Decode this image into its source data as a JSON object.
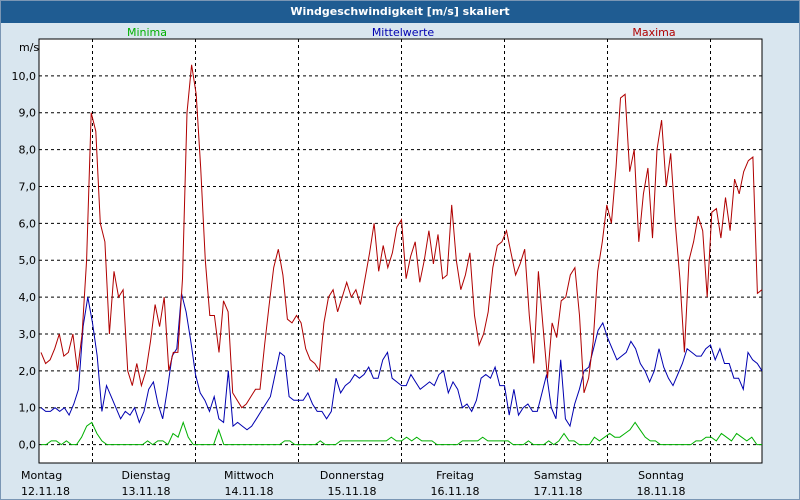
{
  "chart_data": {
    "type": "line",
    "title": "Windgeschwindigkeit [m/s] skaliert",
    "ylabel": "m/s",
    "ylim": [
      -0.5,
      11
    ],
    "yticks": [
      0,
      1,
      2,
      3,
      4,
      5,
      6,
      7,
      8,
      9,
      10
    ],
    "ytick_labels": [
      "0,0",
      "1,0",
      "2,0",
      "3,0",
      "4,0",
      "5,0",
      "6,0",
      "7,0",
      "8,0",
      "9,0",
      "10,0"
    ],
    "xlim": [
      0,
      7
    ],
    "x_ticks": [
      {
        "day": "Montag",
        "date": "12.11.18",
        "x": 0
      },
      {
        "day": "Dienstag",
        "date": "13.11.18",
        "x": 1
      },
      {
        "day": "Mittwoch",
        "date": "14.11.18",
        "x": 2
      },
      {
        "day": "Donnerstag",
        "date": "15.11.18",
        "x": 3
      },
      {
        "day": "Freitag",
        "date": "16.11.18",
        "x": 4
      },
      {
        "day": "Samstag",
        "date": "17.11.18",
        "x": 5
      },
      {
        "day": "Sonntag",
        "date": "18.11.18",
        "x": 6
      }
    ],
    "grid": true,
    "legend_position": "top",
    "series": [
      {
        "name": "Minima",
        "color": "#00b000",
        "values": [
          0.0,
          0.0,
          0.1,
          0.1,
          0.0,
          0.1,
          0.0,
          0.0,
          0.2,
          0.5,
          0.6,
          0.3,
          0.1,
          0.0,
          0.0,
          0.0,
          0.0,
          0.0,
          0.0,
          0.0,
          0.0,
          0.1,
          0.0,
          0.1,
          0.1,
          0.0,
          0.3,
          0.2,
          0.6,
          0.2,
          0.0,
          0.0,
          0.0,
          0.0,
          0.0,
          0.4,
          0.0,
          0.0,
          0.0,
          0.0,
          0.0,
          0.0,
          0.0,
          0.0,
          0.0,
          0.0,
          0.0,
          0.0,
          0.1,
          0.1,
          0.0,
          0.0,
          0.0,
          0.0,
          0.0,
          0.1,
          0.0,
          0.0,
          0.0,
          0.1,
          0.1,
          0.1,
          0.1,
          0.1,
          0.1,
          0.1,
          0.1,
          0.1,
          0.1,
          0.2,
          0.1,
          0.1,
          0.2,
          0.1,
          0.2,
          0.1,
          0.1,
          0.1,
          0.0,
          0.0,
          0.0,
          0.0,
          0.0,
          0.1,
          0.1,
          0.1,
          0.1,
          0.2,
          0.1,
          0.1,
          0.1,
          0.1,
          0.1,
          0.0,
          0.0,
          0.0,
          0.1,
          0.0,
          0.0,
          0.0,
          0.1,
          0.0,
          0.1,
          0.3,
          0.1,
          0.1,
          0.0,
          0.0,
          0.0,
          0.2,
          0.1,
          0.2,
          0.3,
          0.2,
          0.2,
          0.3,
          0.4,
          0.6,
          0.4,
          0.2,
          0.1,
          0.1,
          0.0,
          0.0,
          0.0,
          0.0,
          0.0,
          0.0,
          0.0,
          0.1,
          0.1,
          0.2,
          0.2,
          0.1,
          0.3,
          0.2,
          0.1,
          0.3,
          0.2,
          0.1,
          0.2,
          0.0,
          0.0
        ]
      },
      {
        "name": "Mittelwerte",
        "color": "#0000b0",
        "values": [
          1.0,
          0.9,
          0.9,
          1.0,
          0.9,
          1.0,
          0.8,
          1.1,
          1.5,
          3.2,
          4.0,
          3.3,
          2.4,
          0.9,
          1.6,
          1.3,
          1.0,
          0.7,
          0.9,
          0.8,
          1.0,
          0.6,
          0.9,
          1.5,
          1.7,
          1.1,
          0.7,
          1.5,
          2.4,
          2.6,
          4.1,
          3.6,
          2.8,
          1.9,
          1.4,
          1.2,
          0.9,
          1.3,
          0.7,
          0.6,
          2.0,
          0.5,
          0.6,
          0.5,
          0.4,
          0.5,
          0.7,
          0.9,
          1.1,
          1.3,
          1.9,
          2.5,
          2.4,
          1.3,
          1.2,
          1.2,
          1.2,
          1.4,
          1.1,
          0.9,
          0.9,
          0.7,
          0.9,
          1.8,
          1.4,
          1.6,
          1.7,
          1.9,
          1.8,
          1.9,
          2.1,
          1.8,
          1.8,
          2.3,
          2.5,
          1.8,
          1.7,
          1.6,
          1.6,
          1.9,
          1.7,
          1.5,
          1.6,
          1.7,
          1.6,
          1.9,
          2.0,
          1.4,
          1.7,
          1.5,
          1.0,
          1.1,
          0.9,
          1.2,
          1.8,
          1.9,
          1.8,
          2.1,
          1.6,
          1.6,
          0.8,
          1.5,
          0.8,
          1.0,
          1.1,
          0.9,
          0.9,
          1.4,
          1.9,
          1.0,
          0.7,
          2.3,
          0.7,
          0.5,
          1.1,
          1.5,
          2.0,
          2.1,
          2.6,
          3.1,
          3.3,
          2.9,
          2.6,
          2.3,
          2.4,
          2.5,
          2.8,
          2.6,
          2.2,
          2.0,
          1.7,
          2.0,
          2.6,
          2.1,
          1.8,
          1.6,
          1.9,
          2.2,
          2.6,
          2.5,
          2.4,
          2.4,
          2.6,
          2.7,
          2.3,
          2.6,
          2.2,
          2.2,
          1.8,
          1.8,
          1.5,
          2.5,
          2.3,
          2.2,
          2.0
        ]
      },
      {
        "name": "Maxima",
        "color": "#b00000",
        "values": [
          2.5,
          2.2,
          2.3,
          2.6,
          3.0,
          2.4,
          2.5,
          3.0,
          2.0,
          3.0,
          5.0,
          9.0,
          8.5,
          6.0,
          5.5,
          3.0,
          4.7,
          4.0,
          4.2,
          2.0,
          1.6,
          2.2,
          1.6,
          2.0,
          2.8,
          3.8,
          3.2,
          4.0,
          2.0,
          2.5,
          2.5,
          4.5,
          9.0,
          10.3,
          9.5,
          7.5,
          5.0,
          3.5,
          3.5,
          2.5,
          3.9,
          3.6,
          1.4,
          1.2,
          1.0,
          1.1,
          1.3,
          1.5,
          1.5,
          2.7,
          3.8,
          4.8,
          5.3,
          4.6,
          3.4,
          3.3,
          3.5,
          3.3,
          2.6,
          2.3,
          2.2,
          2.0,
          3.3,
          4.0,
          4.2,
          3.6,
          4.0,
          4.4,
          4.0,
          4.2,
          3.8,
          4.5,
          5.2,
          6.0,
          4.7,
          5.4,
          4.8,
          5.2,
          5.9,
          6.1,
          4.5,
          5.1,
          5.5,
          4.4,
          5.0,
          5.8,
          4.9,
          5.7,
          4.5,
          4.6,
          6.5,
          5.0,
          4.2,
          4.6,
          5.2,
          3.5,
          2.7,
          3.0,
          3.6,
          4.8,
          5.4,
          5.5,
          5.8,
          5.2,
          4.6,
          4.9,
          5.3,
          3.5,
          2.2,
          4.7,
          3.2,
          1.8,
          3.3,
          2.9,
          3.9,
          4.0,
          4.6,
          4.8,
          3.5,
          1.4,
          1.8,
          2.8,
          4.7,
          5.5,
          6.5,
          6.0,
          7.5,
          9.4,
          9.5,
          7.4,
          8.0,
          5.5,
          6.8,
          7.5,
          5.6,
          8.0,
          8.8,
          7.0,
          7.9,
          6.0,
          4.5,
          2.5,
          5.0,
          5.5,
          6.2,
          5.8,
          4.0,
          6.3,
          6.4,
          5.6,
          6.7,
          5.8,
          7.2,
          6.8,
          7.4,
          7.7,
          7.8,
          4.1,
          4.2
        ]
      }
    ]
  }
}
